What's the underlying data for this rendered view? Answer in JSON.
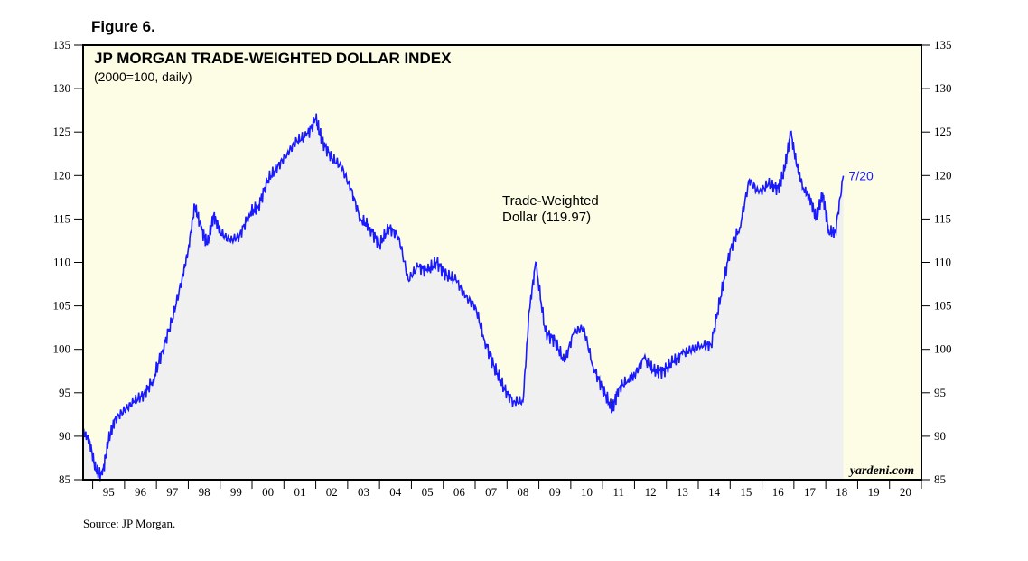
{
  "figure_label": "Figure 6.",
  "source_note": "Source: JP Morgan.",
  "brand": "yardeni.com",
  "colors": {
    "plot_bg": "#fdfde6",
    "fill_area": "#f0f0f0",
    "line": "#1a1aff",
    "axis": "#000000"
  },
  "chart_data": {
    "type": "line",
    "title": "JP MORGAN TRADE-WEIGHTED DOLLAR INDEX",
    "subtitle": "(2000=100, daily)",
    "series_label": [
      "Trade-Weighted",
      "Dollar (119.97)"
    ],
    "end_label": "7/20",
    "ylim": [
      85,
      135
    ],
    "y_ticks": [
      85,
      90,
      95,
      100,
      105,
      110,
      115,
      120,
      125,
      130,
      135
    ],
    "y_tick_labels": [
      "85",
      "90",
      "95",
      "100",
      "105",
      "110",
      "115",
      "120",
      "125",
      "130",
      "135"
    ],
    "xlim": [
      1994.7,
      2021
    ],
    "x_categories": [
      "95",
      "96",
      "97",
      "98",
      "99",
      "00",
      "01",
      "02",
      "03",
      "04",
      "05",
      "06",
      "07",
      "08",
      "09",
      "10",
      "11",
      "12",
      "13",
      "14",
      "15",
      "16",
      "17",
      "18",
      "19",
      "20"
    ],
    "x_category_years": [
      1995,
      1996,
      1997,
      1998,
      1999,
      2000,
      2001,
      2002,
      2003,
      2004,
      2005,
      2006,
      2007,
      2008,
      2009,
      2010,
      2011,
      2012,
      2013,
      2014,
      2015,
      2016,
      2017,
      2018,
      2019,
      2020
    ],
    "series": [
      {
        "name": "Trade-Weighted Dollar",
        "x": [
          1994.7,
          1994.9,
          1995.1,
          1995.3,
          1995.5,
          1995.7,
          1996.0,
          1996.3,
          1996.6,
          1996.9,
          1997.2,
          1997.5,
          1997.8,
          1998.0,
          1998.2,
          1998.4,
          1998.6,
          1998.8,
          1999.0,
          1999.3,
          1999.6,
          1999.9,
          2000.2,
          2000.5,
          2000.8,
          2001.1,
          2001.4,
          2001.7,
          2002.0,
          2002.2,
          2002.5,
          2002.8,
          2003.1,
          2003.4,
          2003.7,
          2004.0,
          2004.3,
          2004.6,
          2004.9,
          2005.2,
          2005.5,
          2005.8,
          2006.1,
          2006.4,
          2006.7,
          2007.0,
          2007.3,
          2007.6,
          2007.9,
          2008.2,
          2008.5,
          2008.7,
          2008.9,
          2009.2,
          2009.5,
          2009.8,
          2010.1,
          2010.4,
          2010.7,
          2011.0,
          2011.3,
          2011.5,
          2011.8,
          2012.0,
          2012.3,
          2012.6,
          2012.9,
          2013.2,
          2013.5,
          2013.8,
          2014.1,
          2014.4,
          2014.7,
          2015.0,
          2015.3,
          2015.6,
          2015.9,
          2016.2,
          2016.5,
          2016.7,
          2016.9,
          2017.1,
          2017.3,
          2017.5,
          2017.7,
          2017.9,
          2018.1,
          2018.3,
          2018.55
        ],
        "y": [
          90.5,
          89.5,
          86.0,
          85.5,
          89.5,
          92.0,
          93.0,
          94.0,
          94.8,
          96.5,
          100.0,
          103.5,
          108.0,
          111.5,
          116.5,
          114.0,
          112.0,
          115.5,
          113.5,
          112.5,
          113.0,
          115.5,
          116.5,
          119.5,
          121.0,
          122.5,
          124.0,
          124.5,
          126.5,
          124.0,
          122.0,
          121.0,
          118.5,
          115.0,
          114.0,
          112.0,
          114.0,
          113.0,
          108.0,
          109.5,
          109.0,
          110.0,
          108.5,
          108.0,
          106.0,
          105.0,
          101.0,
          98.0,
          95.5,
          94.0,
          94.0,
          104.5,
          110.0,
          102.0,
          101.0,
          98.5,
          102.0,
          102.5,
          98.0,
          95.5,
          93.0,
          95.5,
          96.5,
          97.0,
          99.0,
          97.5,
          97.5,
          98.5,
          99.5,
          100.0,
          100.5,
          100.5,
          106.0,
          111.5,
          114.0,
          119.5,
          118.0,
          119.0,
          118.5,
          120.5,
          125.0,
          121.0,
          118.5,
          117.5,
          115.0,
          118.0,
          113.5,
          113.5,
          119.97
        ]
      }
    ]
  }
}
